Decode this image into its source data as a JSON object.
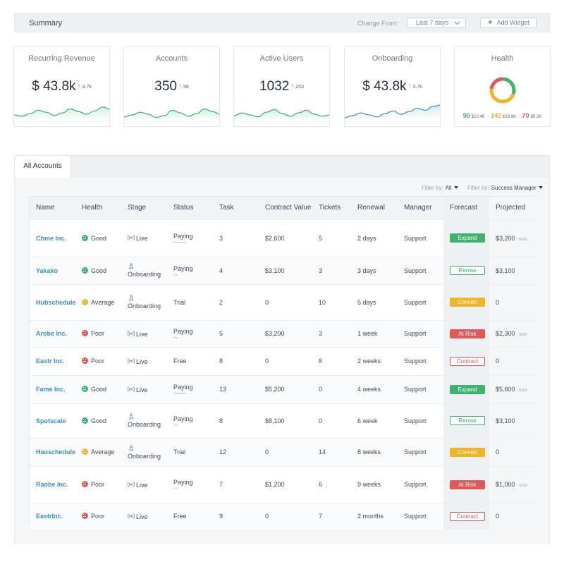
{
  "summary": {
    "title": "Summary",
    "change_label": "Change From:",
    "range_value": "Last 7 days",
    "add_widget_label": "Add Widget"
  },
  "cards": [
    {
      "title": "Recurring Revenue",
      "value": "$ 43.8k",
      "delta": "3.7k",
      "trend_icon": "arrow-up-icon",
      "sparkline": [
        15,
        13,
        17,
        22,
        19,
        14,
        18,
        24,
        20,
        16,
        21,
        27,
        23
      ]
    },
    {
      "title": "Accounts",
      "value": "350",
      "delta": "56",
      "trend_icon": "arrow-up-icon",
      "sparkline": [
        12,
        15,
        19,
        16,
        11,
        14,
        22,
        18,
        13,
        17,
        24,
        20,
        16
      ]
    },
    {
      "title": "Active Users",
      "value": "1032",
      "delta": "203",
      "trend_icon": "arrow-up-icon",
      "sparkline": [
        14,
        18,
        15,
        12,
        19,
        23,
        17,
        13,
        18,
        22,
        16,
        13,
        15
      ]
    },
    {
      "title": "Onboarding",
      "value": "$ 43.8k",
      "delta": "3.7k",
      "trend_icon": "arrow-up-icon",
      "sparkline": [
        11,
        14,
        18,
        15,
        12,
        17,
        21,
        16,
        20,
        25,
        22,
        28,
        30
      ]
    }
  ],
  "health": {
    "title": "Health",
    "segments": [
      {
        "count": "90",
        "amount": "$10.4K",
        "color": "#3cb371",
        "share": 0.3
      },
      {
        "count": "142",
        "amount": "$19.8K",
        "color": "#f0b429",
        "share": 0.47
      },
      {
        "count": "70",
        "amount": "$9.2K",
        "color": "#e05858",
        "share": 0.23
      }
    ]
  },
  "accounts": {
    "tab_label": "All Accounts",
    "filter1_label": "Filter by:",
    "filter1_value": "All",
    "filter2_label": "Filter by:",
    "filter2_value": "Success Manager",
    "columns": [
      "Name",
      "Health",
      "Stage",
      "Status",
      "Task",
      "Contract Value",
      "Tickets",
      "Renewal",
      "Manager",
      "Forecast",
      "Projected"
    ],
    "rows": [
      {
        "name": "Chme Inc.",
        "health": "Good",
        "health_type": "good",
        "stage": "Live",
        "stage_icon": "signal-icon",
        "status": "Paying",
        "status_sub": "Enterprise",
        "task": "3",
        "contract": "$2,600",
        "tickets": "5",
        "renewal": "2 days",
        "manager": "Support",
        "forecast": "Expand",
        "forecast_type": "expand",
        "projected": "$3,200",
        "projected_delta": "↑ $600"
      },
      {
        "name": "Yakako",
        "health": "Good",
        "health_type": "good",
        "stage": "Onboarding",
        "stage_icon": "rocket-icon",
        "status": "Paying",
        "status_sub": "Pro",
        "task": "4",
        "contract": "$3,100",
        "tickets": "3",
        "renewal": "3 days",
        "manager": "Support",
        "forecast": "Renew",
        "forecast_type": "renew",
        "projected": "$3,100",
        "projected_delta": ""
      },
      {
        "name": "Hubschedule",
        "health": "Average",
        "health_type": "avg",
        "stage": "Onboarding",
        "stage_icon": "rocket-icon",
        "status": "Trial",
        "status_sub": "",
        "task": "2",
        "contract": "0",
        "tickets": "10",
        "renewal": "5 days",
        "manager": "Support",
        "forecast": "Convert",
        "forecast_type": "convert",
        "projected": "0",
        "projected_delta": ""
      },
      {
        "name": "Arobe Inc.",
        "health": "Poor",
        "health_type": "poor",
        "stage": "Live",
        "stage_icon": "signal-icon",
        "status": "Paying",
        "status_sub": "Pro",
        "task": "5",
        "contract": "$3,200",
        "tickets": "3",
        "renewal": "1 week",
        "manager": "Support",
        "forecast": "At Risk",
        "forecast_type": "risk",
        "projected": "$2,300",
        "projected_delta": "↓ $900"
      },
      {
        "name": "Eastr Inc.",
        "health": "Poor",
        "health_type": "poor",
        "stage": "Live",
        "stage_icon": "signal-icon",
        "status": "Free",
        "status_sub": "",
        "task": "8",
        "contract": "0",
        "tickets": "8",
        "renewal": "2 weeks",
        "manager": "Support",
        "forecast": "Contract",
        "forecast_type": "contract",
        "projected": "0",
        "projected_delta": ""
      },
      {
        "name": "Fame Inc.",
        "health": "Good",
        "health_type": "good",
        "stage": "Live",
        "stage_icon": "signal-icon",
        "status": "Paying",
        "status_sub": "Enterprise",
        "task": "13",
        "contract": "$5,200",
        "tickets": "0",
        "renewal": "4 weeks",
        "manager": "Support",
        "forecast": "Expand",
        "forecast_type": "expand",
        "projected": "$5,600",
        "projected_delta": "↑ $400"
      },
      {
        "name": "Spotscale",
        "health": "Good",
        "health_type": "good",
        "stage": "Onboarding",
        "stage_icon": "rocket-icon",
        "status": "Paying",
        "status_sub": "Pro",
        "task": "8",
        "contract": "$8,100",
        "tickets": "0",
        "renewal": "6 week",
        "manager": "Support",
        "forecast": "Renew",
        "forecast_type": "renew",
        "projected": "$3,100",
        "projected_delta": ""
      },
      {
        "name": "Hauschedule",
        "health": "Average",
        "health_type": "avg",
        "stage": "Onboarding",
        "stage_icon": "rocket-icon",
        "status": "Trial",
        "status_sub": "",
        "task": "12",
        "contract": "0",
        "tickets": "14",
        "renewal": "8 weeks",
        "manager": "Support",
        "forecast": "Convert",
        "forecast_type": "convert",
        "projected": "0",
        "projected_delta": ""
      },
      {
        "name": "Raobe Inc.",
        "health": "Poor",
        "health_type": "poor",
        "stage": "Live",
        "stage_icon": "signal-icon",
        "status": "Paying",
        "status_sub": "Pro",
        "task": "7",
        "contract": "$1,200",
        "tickets": "6",
        "renewal": "9 weeks",
        "manager": "Support",
        "forecast": "At Risk",
        "forecast_type": "risk",
        "projected": "$1,000",
        "projected_delta": "↓ $200"
      },
      {
        "name": "EastrInc.",
        "health": "Poor",
        "health_type": "poor",
        "stage": "Live",
        "stage_icon": "signal-icon",
        "status": "Free",
        "status_sub": "",
        "task": "9",
        "contract": "0",
        "tickets": "7",
        "renewal": "2 months",
        "manager": "Support",
        "forecast": "Contract",
        "forecast_type": "contract",
        "projected": "0",
        "projected_delta": ""
      }
    ]
  }
}
